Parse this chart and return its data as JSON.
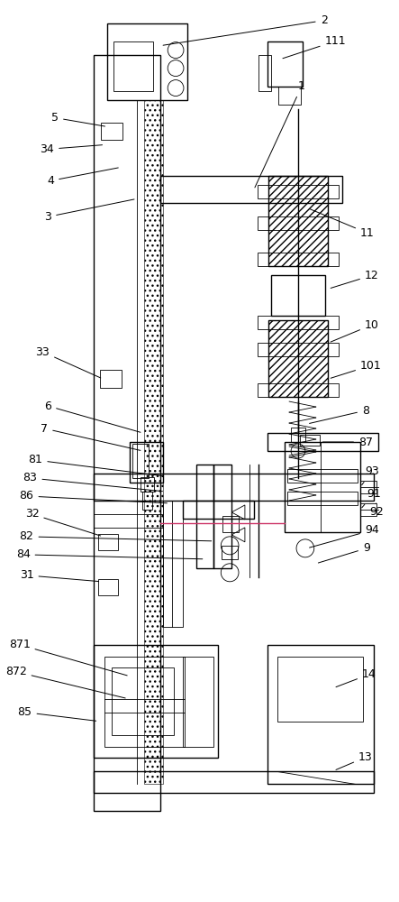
{
  "bg_color": "#ffffff",
  "lc": "#000000",
  "lw": 1.0,
  "tlw": 0.6,
  "fig_width": 4.43,
  "fig_height": 10.0
}
